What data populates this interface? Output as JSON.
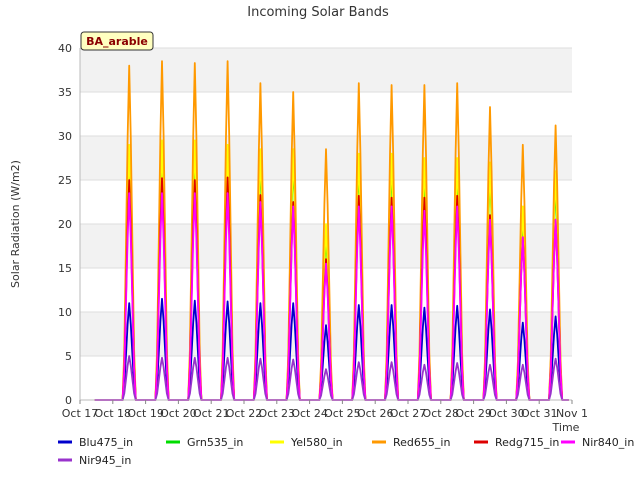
{
  "chart_data": {
    "type": "line",
    "title": "Incoming Solar Bands",
    "xlabel": "Time",
    "ylabel": "Solar Radiation (W/m2)",
    "badge": "BA_arable",
    "ylim": [
      0,
      40
    ],
    "yticks": [
      0,
      5,
      10,
      15,
      20,
      25,
      30,
      35,
      40
    ],
    "xlim": [
      "Oct 17",
      "Nov 1"
    ],
    "xticks": [
      "Oct 17",
      "Oct 18",
      "Oct 19",
      "Oct 20",
      "Oct 21",
      "Oct 22",
      "Oct 23",
      "Oct 24",
      "Oct 25",
      "Oct 26",
      "Oct 27",
      "Oct 28",
      "Oct 29",
      "Oct 30",
      "Oct 31",
      "Nov 1"
    ],
    "grid": true,
    "legend_position": "bottom",
    "day_labels": [
      "Oct 17",
      "Oct 18",
      "Oct 19",
      "Oct 20",
      "Oct 21",
      "Oct 22",
      "Oct 23",
      "Oct 24",
      "Oct 25",
      "Oct 26",
      "Oct 27",
      "Oct 28",
      "Oct 29",
      "Oct 30",
      "Oct 31"
    ],
    "series": [
      {
        "name": "Blu475_in",
        "color": "#0000cc",
        "daily_peak": [
          0,
          11.0,
          11.5,
          11.3,
          11.2,
          11.0,
          11.0,
          8.5,
          10.8,
          10.8,
          10.5,
          10.7,
          10.3,
          8.8,
          9.5
        ]
      },
      {
        "name": "Grn535_in",
        "color": "#00dd00",
        "daily_peak": [
          0,
          28.0,
          28.5,
          28.0,
          28.5,
          27.5,
          27.5,
          19.0,
          27.0,
          27.0,
          26.5,
          26.5,
          26.0,
          21.0,
          25.0
        ]
      },
      {
        "name": "Yel580_in",
        "color": "#ffff00",
        "daily_peak": [
          0,
          29.0,
          29.5,
          29.5,
          29.0,
          28.5,
          28.5,
          20.0,
          28.0,
          28.0,
          27.5,
          27.5,
          27.0,
          22.0,
          26.0
        ]
      },
      {
        "name": "Red655_in",
        "color": "#ff9900",
        "daily_peak": [
          0,
          38.0,
          38.5,
          38.3,
          38.5,
          36.0,
          35.0,
          28.5,
          36.0,
          35.8,
          35.8,
          36.0,
          33.3,
          29.0,
          31.2
        ]
      },
      {
        "name": "Redg715_in",
        "color": "#dd0000",
        "daily_peak": [
          0,
          25.0,
          25.2,
          25.0,
          25.3,
          23.3,
          22.5,
          16.0,
          23.2,
          23.0,
          23.0,
          23.2,
          21.0,
          18.5,
          20.5
        ]
      },
      {
        "name": "Nir840_in",
        "color": "#ff00ff",
        "daily_peak": [
          0,
          23.5,
          23.5,
          23.5,
          23.5,
          22.5,
          22.0,
          15.5,
          22.0,
          22.0,
          21.5,
          22.0,
          20.5,
          18.5,
          20.5
        ]
      },
      {
        "name": "Nir945_in",
        "color": "#9933cc",
        "daily_peak": [
          0,
          5.0,
          4.8,
          4.8,
          4.8,
          4.7,
          4.6,
          3.5,
          4.3,
          4.3,
          4.0,
          4.2,
          4.0,
          4.0,
          4.7
        ]
      }
    ]
  }
}
